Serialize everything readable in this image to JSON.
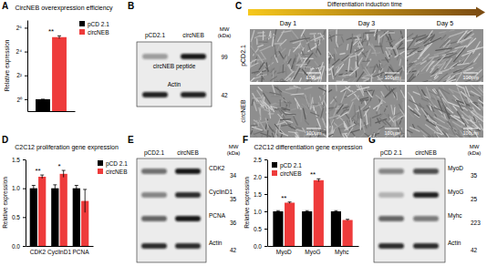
{
  "panel_labels": [
    "A",
    "B",
    "C",
    "D",
    "E",
    "F",
    "G"
  ],
  "chart_data": [
    {
      "type": "bar",
      "title": "CircNEB overexpression efficiency",
      "y_label": "Relative expression",
      "categories": [
        null
      ],
      "series": [
        {
          "name": "pCD 2.1",
          "color": "#000000",
          "values": [
            1
          ],
          "errors": [
            0
          ]
        },
        {
          "name": "circNEB",
          "color": "#ee3b3b",
          "values": [
            37
          ],
          "errors": [
            3
          ]
        }
      ],
      "significance": [
        "**"
      ],
      "log": "y",
      "ylim": [
        0.5,
        100
      ],
      "yticks": [
        {
          "value": 1,
          "label": "2⁰"
        },
        {
          "value": 4,
          "label": "2²"
        },
        {
          "value": 16,
          "label": "2⁴"
        },
        {
          "value": 64,
          "label": "2⁶"
        }
      ],
      "legend": "top-right"
    },
    {
      "type": "bar",
      "title": "C2C12 proliferation gene expression",
      "y_label": "Relative expression",
      "categories": [
        "CDK2",
        "CyclinD1",
        "PCNA"
      ],
      "series": [
        {
          "name": "pCD 2.1",
          "color": "#000000",
          "values": [
            1,
            1,
            1
          ],
          "errors": [
            0.05,
            0.06,
            0.05
          ]
        },
        {
          "name": "circNEB",
          "color": "#ee3b3b",
          "values": [
            1.2,
            1.25,
            0.78
          ],
          "errors": [
            0.03,
            0.06,
            0.2
          ]
        }
      ],
      "significance": [
        "**",
        "*",
        null
      ],
      "ylim": [
        0,
        1.5
      ],
      "yticks": [
        {
          "value": 0,
          "label": "0.0"
        },
        0.5,
        {
          "value": 1,
          "label": "1.0"
        },
        1.5
      ],
      "legend": "top-right"
    },
    {
      "type": "bar",
      "title": "C2C12 differentiation gene expression",
      "y_label": "Relative expression",
      "categories": [
        "MyoD",
        "MyoG",
        "Myhc"
      ],
      "series": [
        {
          "name": "pCD 2.1",
          "color": "#000000",
          "values": [
            1,
            1,
            1
          ],
          "errors": [
            0.02,
            0.02,
            0.02
          ]
        },
        {
          "name": "circNEB",
          "color": "#ee3b3b",
          "values": [
            1.25,
            1.9,
            0.75
          ],
          "errors": [
            0.02,
            0.04,
            0.02
          ]
        }
      ],
      "significance": [
        "**",
        "**",
        null
      ],
      "ylim": [
        0,
        2.5
      ],
      "yticks": [
        {
          "value": 0,
          "label": "0.0"
        },
        0.5,
        {
          "value": 1,
          "label": "1.0"
        },
        1.5,
        {
          "value": 2,
          "label": "2.0"
        },
        2.5
      ],
      "legend": "top-left"
    }
  ],
  "blots": [
    {
      "lanes": [
        "pCD2.1",
        "circNEB"
      ],
      "mw_header": [
        "MW",
        "(kDa)"
      ],
      "rows": [
        {
          "label": "circNEB peptide",
          "mw": 99
        },
        {
          "label": "Actin",
          "mw": 42
        }
      ]
    },
    {
      "lanes": [
        "pCD2.1",
        "circNEB"
      ],
      "mw_header": [
        "MW",
        "(kDa)"
      ],
      "rows": [
        {
          "label": "CDK2",
          "mw": 34
        },
        {
          "label": "CyclinD1",
          "mw": 35
        },
        {
          "label": "PCNA",
          "mw": 36
        },
        {
          "label": "Actin",
          "mw": 42
        }
      ]
    },
    {
      "lanes": [
        "pCD 2.1",
        "circNEB"
      ],
      "mw_header": [
        "MW",
        "(kDa)"
      ],
      "rows": [
        {
          "label": "MyoD",
          "mw": 35
        },
        {
          "label": "MyoG",
          "mw": 25
        },
        {
          "label": "Myhc",
          "mw": 223
        },
        {
          "label": "Actin",
          "mw": 42
        }
      ]
    }
  ],
  "micrographs": {
    "header": "Differentiation induction time",
    "days": [
      "Day 1",
      "Day 3",
      "Day 5"
    ],
    "rows": [
      "pCD2.1",
      "circNEB"
    ],
    "scale_bar": "100μm"
  }
}
